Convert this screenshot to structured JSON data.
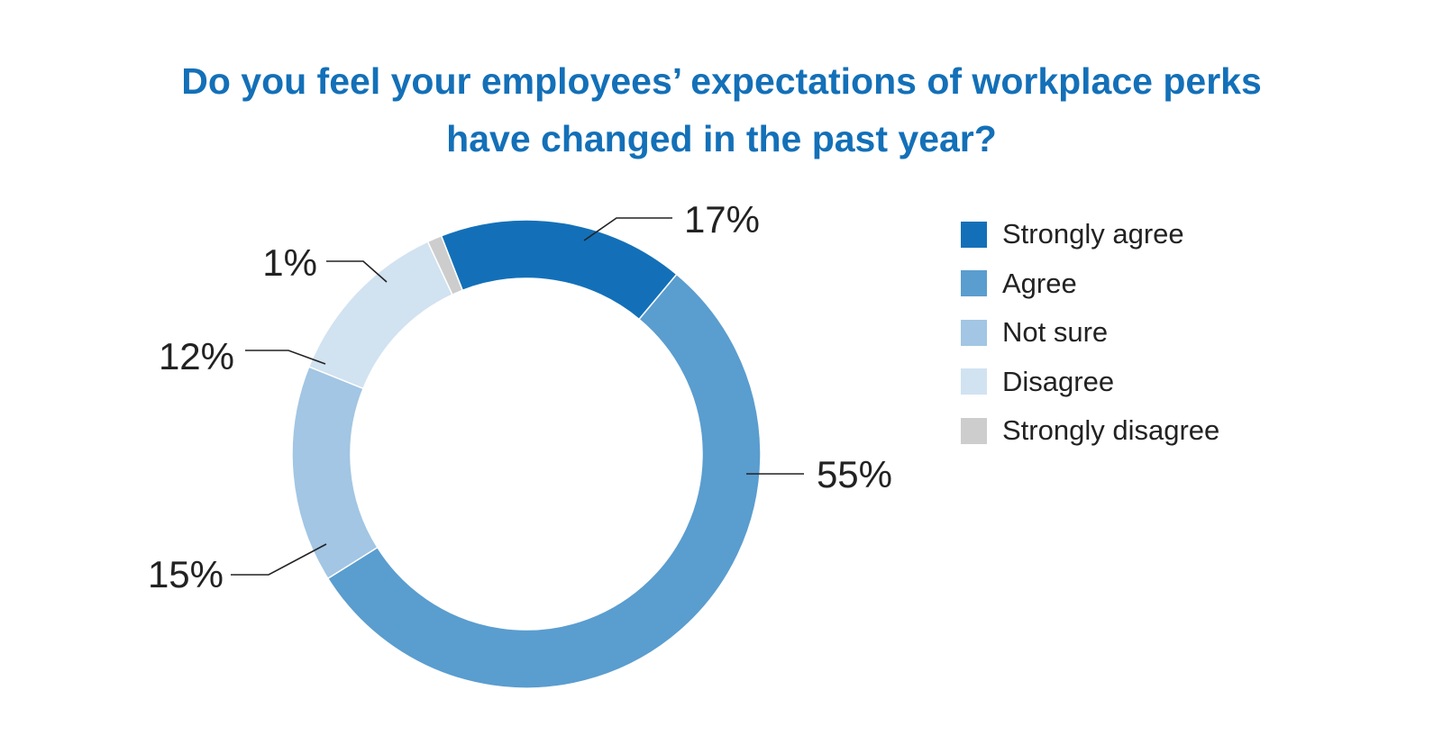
{
  "chart_data": {
    "type": "pie",
    "variant": "donut",
    "title_lines": [
      "Do you feel your employees’ expectations of workplace perks",
      "have changed in the past year?"
    ],
    "categories": [
      "Strongly agree",
      "Agree",
      "Not sure",
      "Disagree",
      "Strongly disagree"
    ],
    "values": [
      17,
      55,
      15,
      12,
      1
    ],
    "value_labels": [
      "17%",
      "55%",
      "15%",
      "12%",
      "1%"
    ],
    "colors": [
      "#1370b8",
      "#5a9dcf",
      "#a2c6e3",
      "#d1e2f1",
      "#cdcdcd"
    ],
    "legend_position": "right"
  }
}
